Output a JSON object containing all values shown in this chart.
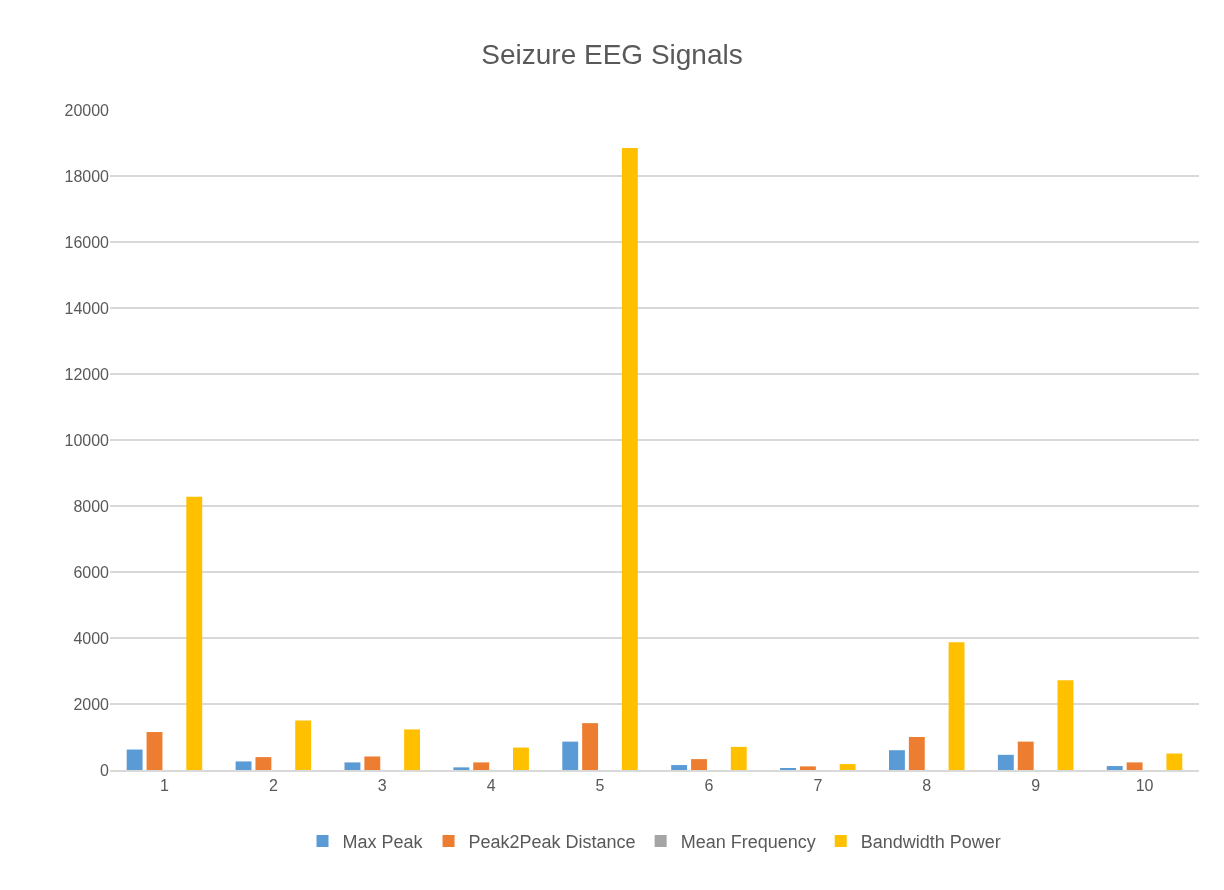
{
  "chart_data": {
    "type": "bar",
    "title": "Seizure EEG Signals",
    "categories": [
      "1",
      "2",
      "3",
      "4",
      "5",
      "6",
      "7",
      "8",
      "9",
      "10"
    ],
    "series": [
      {
        "name": "Max Peak",
        "color": "#5b9bd5",
        "values": [
          620,
          260,
          230,
          80,
          860,
          150,
          40,
          600,
          460,
          120
        ]
      },
      {
        "name": "Peak2Peak Distance",
        "color": "#ed7d31",
        "values": [
          1150,
          390,
          410,
          230,
          1420,
          330,
          110,
          1000,
          860,
          230
        ]
      },
      {
        "name": "Mean Frequency",
        "color": "#a5a5a5",
        "values": [
          0,
          0,
          0,
          0,
          0,
          0,
          0,
          0,
          0,
          0
        ]
      },
      {
        "name": "Bandwidth Power",
        "color": "#ffc000",
        "values": [
          8280,
          1500,
          1230,
          680,
          18850,
          700,
          180,
          3870,
          2720,
          500
        ]
      }
    ],
    "ylim": [
      0,
      20000
    ],
    "yticks": [
      0,
      2000,
      4000,
      6000,
      8000,
      10000,
      12000,
      14000,
      16000,
      18000,
      20000
    ],
    "grid": "y",
    "legend": "bottom"
  }
}
